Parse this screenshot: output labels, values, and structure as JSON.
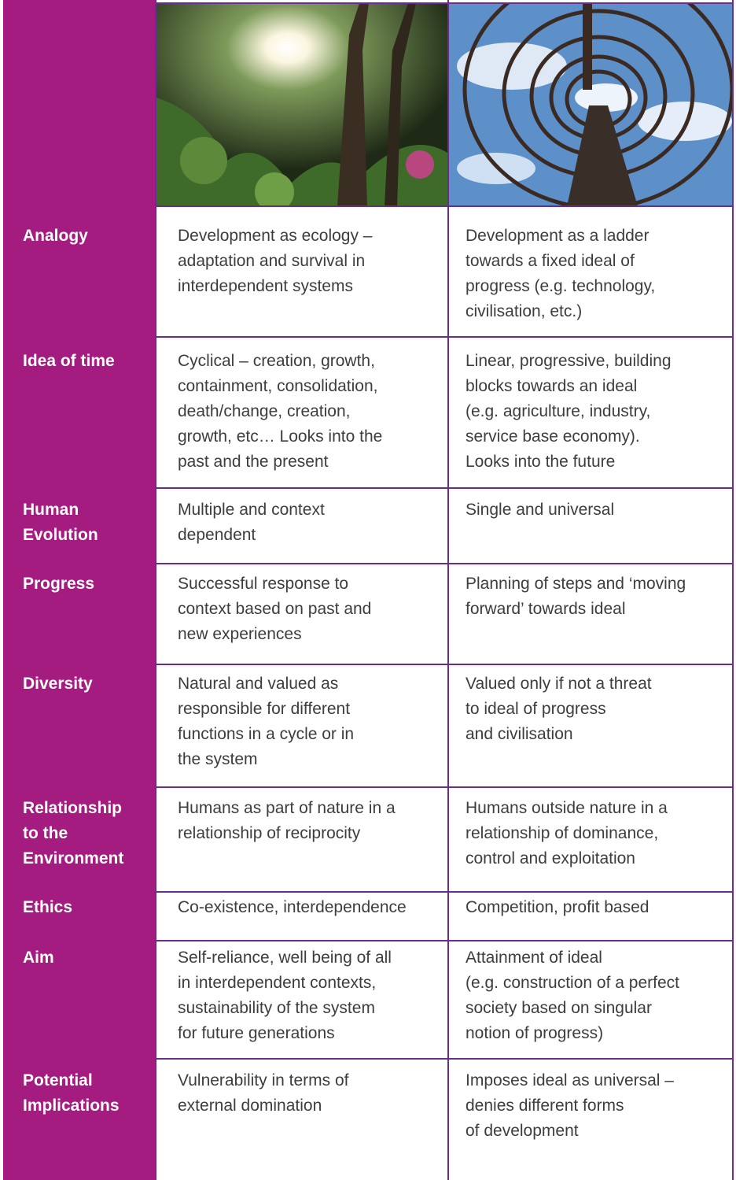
{
  "table": {
    "rows": [
      {
        "label": [
          "Analogy"
        ],
        "cells": [
          [
            "Development as ecology –",
            "adaptation and survival in",
            "interdependent systems"
          ],
          [
            "Development as a ladder",
            "towards a fixed ideal of",
            "progress (e.g. technology,",
            "civilisation, etc.)"
          ]
        ]
      },
      {
        "label": [
          "Idea of time"
        ],
        "cells": [
          [
            "Cyclical – creation, growth,",
            "containment, consolidation,",
            "death/change, creation,",
            "growth, etc… Looks into the",
            "past and the present"
          ],
          [
            "Linear, progressive, building",
            "blocks towards an ideal",
            "(e.g. agriculture, industry,",
            "service base economy).",
            "Looks into the future"
          ]
        ]
      },
      {
        "label": [
          "Human",
          "Evolution"
        ],
        "cells": [
          [
            "Multiple and context",
            "dependent"
          ],
          [
            "Single and universal"
          ]
        ]
      },
      {
        "label": [
          "Progress"
        ],
        "cells": [
          [
            "Successful response to",
            "context based on past and",
            "new experiences"
          ],
          [
            "Planning of steps and ‘moving",
            "forward’ towards ideal"
          ]
        ]
      },
      {
        "label": [
          "Diversity"
        ],
        "cells": [
          [
            "Natural and valued as",
            "responsible for different",
            "functions in a cycle or in",
            "the system"
          ],
          [
            "Valued only if not a threat",
            "to ideal of progress",
            "and civilisation"
          ]
        ]
      },
      {
        "label": [
          "Relationship",
          "to the",
          "Environment"
        ],
        "cells": [
          [
            "Humans as part of nature in a",
            "relationship of reciprocity"
          ],
          [
            "Humans outside nature in a",
            "relationship of dominance,",
            "control and exploitation"
          ]
        ]
      },
      {
        "label": [
          "Ethics"
        ],
        "cells": [
          [
            "Co-existence, interdependence"
          ],
          [
            "Competition, profit based"
          ]
        ]
      },
      {
        "label": [
          "Aim"
        ],
        "cells": [
          [
            "Self-reliance, well being of all",
            "in interdependent contexts,",
            "sustainability of the system",
            "for future generations"
          ],
          [
            "Attainment of ideal",
            "(e.g. construction of a perfect",
            "society based on singular",
            "notion of progress)"
          ]
        ]
      },
      {
        "label": [
          "Potential",
          "Implications"
        ],
        "cells": [
          [
            "Vulnerability in terms of",
            "external domination"
          ],
          [
            "Imposes ideal as universal –",
            "denies different forms",
            "of development"
          ]
        ]
      }
    ]
  }
}
